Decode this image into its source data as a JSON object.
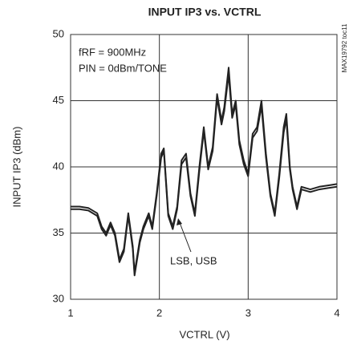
{
  "chart_data": {
    "type": "line",
    "title": "INPUT IP3 vs. VCTRL",
    "xlabel": "VCTRL (V)",
    "ylabel": "INPUT IP3 (dBm)",
    "annotations": [
      "fRF = 900MHz",
      "PIN = 0dBm/TONE",
      "LSB, USB",
      "MAX19792 toc11"
    ],
    "x": [
      1.0,
      1.1,
      1.2,
      1.3,
      1.35,
      1.4,
      1.45,
      1.5,
      1.55,
      1.6,
      1.65,
      1.7,
      1.72,
      1.78,
      1.82,
      1.88,
      1.92,
      1.97,
      2.02,
      2.05,
      2.1,
      2.15,
      2.2,
      2.25,
      2.3,
      2.35,
      2.4,
      2.45,
      2.5,
      2.55,
      2.6,
      2.65,
      2.7,
      2.73,
      2.78,
      2.82,
      2.86,
      2.9,
      2.95,
      3.0,
      3.05,
      3.1,
      3.15,
      3.2,
      3.25,
      3.3,
      3.35,
      3.4,
      3.43,
      3.47,
      3.5,
      3.55,
      3.6,
      3.7,
      3.8,
      3.9,
      4.0
    ],
    "series": [
      {
        "name": "LSB",
        "color": "#222222",
        "values": [
          37.0,
          37.0,
          36.9,
          36.5,
          35.5,
          35.0,
          35.8,
          35.0,
          33.0,
          33.8,
          36.5,
          34.0,
          32.0,
          34.5,
          35.5,
          36.5,
          35.5,
          38.0,
          41.0,
          41.4,
          36.5,
          35.5,
          37.0,
          40.5,
          41.0,
          38.0,
          36.5,
          40.0,
          43.0,
          40.0,
          41.5,
          45.5,
          43.5,
          44.5,
          47.5,
          44.0,
          45.0,
          42.0,
          40.5,
          39.5,
          42.5,
          43.0,
          45.0,
          41.0,
          38.0,
          36.5,
          39.5,
          43.0,
          44.0,
          40.0,
          38.5,
          37.0,
          38.5,
          38.3,
          38.5,
          38.6,
          38.7
        ]
      },
      {
        "name": "USB",
        "color": "#222222",
        "values": [
          36.8,
          36.8,
          36.7,
          36.3,
          35.3,
          34.8,
          35.6,
          34.8,
          32.8,
          33.6,
          36.3,
          33.8,
          31.8,
          34.3,
          35.3,
          36.3,
          35.3,
          37.8,
          40.7,
          41.2,
          36.3,
          35.3,
          36.8,
          40.2,
          40.7,
          37.8,
          36.3,
          39.7,
          42.7,
          39.8,
          41.2,
          45.2,
          43.2,
          44.2,
          47.0,
          43.7,
          44.7,
          41.7,
          40.2,
          39.3,
          42.2,
          42.7,
          44.6,
          40.7,
          37.8,
          36.3,
          39.2,
          42.6,
          43.6,
          39.8,
          38.3,
          36.8,
          38.3,
          38.1,
          38.3,
          38.4,
          38.5
        ]
      }
    ],
    "xlim": [
      1,
      4
    ],
    "xticks": [
      1,
      2,
      3,
      4
    ],
    "ylim": [
      30,
      50
    ],
    "yticks": [
      30,
      35,
      40,
      45,
      50
    ],
    "grid": true
  }
}
